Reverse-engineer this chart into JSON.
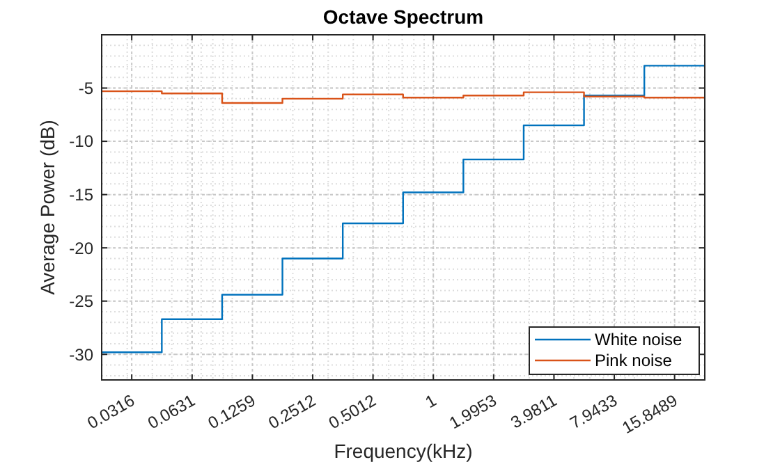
{
  "chart_data": {
    "type": "step",
    "title": "Octave Spectrum",
    "xlabel": "Frequency(kHz)",
    "ylabel": "Average Power (dB)",
    "x": [
      0.0224,
      0.0446,
      0.089,
      0.1776,
      0.3544,
      0.7071,
      1.4109,
      2.815,
      5.6167,
      11.2068,
      22.4
    ],
    "series": [
      {
        "name": "White noise",
        "color": "#0072bd",
        "values": [
          -29.8,
          -26.7,
          -24.4,
          -21.0,
          -17.7,
          -14.8,
          -11.7,
          -8.5,
          -5.7,
          -2.9,
          -2.9
        ]
      },
      {
        "name": "Pink noise",
        "color": "#d95319",
        "values": [
          -5.3,
          -5.5,
          -6.4,
          -6.0,
          -5.6,
          -5.9,
          -5.7,
          -5.4,
          -5.8,
          -5.9,
          -5.9
        ]
      }
    ],
    "log": "x",
    "xlim": [
      0.0224,
      22.4
    ],
    "xticks": [
      0.0316,
      0.0631,
      0.1259,
      0.2512,
      0.5012,
      1,
      1.9953,
      3.9811,
      7.9433,
      15.8489
    ],
    "ylim": [
      -32.4,
      0
    ],
    "yticks": [
      -30,
      -25,
      -20,
      -15,
      -10,
      -5
    ],
    "grid": true,
    "legend": "bottom right"
  }
}
